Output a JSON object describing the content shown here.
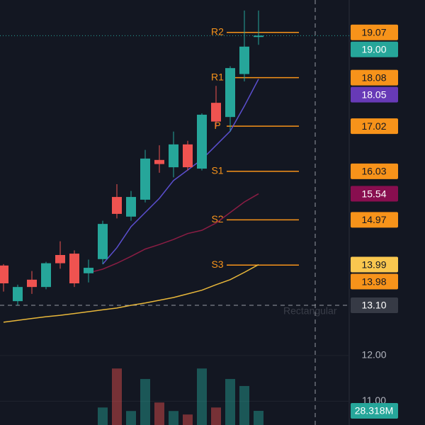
{
  "chart_data": {
    "type": "candlestick",
    "ylim": [
      10.48,
      19.78
    ],
    "yticks": [
      {
        "value": 12,
        "label": "12.00"
      },
      {
        "value": 11,
        "label": "11.00"
      }
    ],
    "grid": true,
    "up_color": "#26a69a",
    "down_color": "#ef5350",
    "open": [
      13.97,
      13.19,
      13.66,
      13.5,
      14.2,
      14.23,
      13.8,
      14.11,
      15.47,
      15.04,
      15.41,
      16.28,
      16.12,
      16.62,
      16.09,
      17.53,
      17.22,
      18.16,
      18.97
    ],
    "high": [
      14.0,
      13.55,
      13.85,
      14.05,
      14.5,
      14.3,
      14.1,
      14.95,
      15.75,
      15.6,
      16.5,
      16.6,
      16.9,
      16.7,
      17.3,
      17.9,
      18.33,
      19.55,
      19.55
    ],
    "low": [
      13.4,
      13.1,
      13.35,
      13.45,
      13.9,
      13.5,
      13.6,
      14.0,
      15.0,
      14.95,
      15.35,
      16.0,
      15.9,
      16.05,
      16.05,
      17.0,
      16.9,
      18.0,
      18.8
    ],
    "close": [
      13.58,
      13.5,
      13.5,
      14.02,
      14.02,
      13.58,
      13.92,
      14.88,
      15.1,
      15.47,
      16.31,
      16.19,
      16.62,
      16.12,
      17.27,
      17.12,
      18.29,
      18.76,
      19
    ],
    "last_close_label": "19.00",
    "moving_averages": [
      {
        "color": "#5b4fcf",
        "tag_color": "#673ab7",
        "values": [
          null,
          null,
          null,
          null,
          null,
          null,
          null,
          14.0,
          14.36,
          14.82,
          15.13,
          15.44,
          15.83,
          16.06,
          16.29,
          16.6,
          16.91,
          17.46,
          18.05
        ]
      },
      {
        "color": "#8b1d44",
        "tag_color": "#880e4f",
        "values": [
          null,
          null,
          null,
          null,
          null,
          null,
          13.81,
          13.89,
          14.02,
          14.17,
          14.33,
          14.43,
          14.54,
          14.67,
          14.74,
          14.9,
          15.13,
          15.36,
          15.54
        ]
      },
      {
        "color": "#e8b73a",
        "tag_color": "#f9c74f",
        "values": [
          12.73,
          12.77,
          12.81,
          12.85,
          12.88,
          12.92,
          12.96,
          13.0,
          13.04,
          13.1,
          13.15,
          13.21,
          13.27,
          13.35,
          13.43,
          13.55,
          13.66,
          13.82,
          13.99
        ]
      }
    ],
    "pivots": {
      "color": "#f7931a",
      "labels": [
        "R2",
        "R1",
        "P",
        "S1",
        "S2",
        "S3"
      ],
      "values": [
        19.07,
        18.08,
        17.02,
        16.03,
        14.97,
        13.98
      ]
    },
    "crosshair_price": {
      "value": 13.1,
      "label": "13.10"
    },
    "volume": [
      null,
      null,
      null,
      null,
      null,
      null,
      null,
      35,
      113,
      28,
      92,
      45,
      28,
      21,
      113,
      35,
      92,
      78,
      28.318
    ],
    "volume_ylim": [
      0,
      425
    ],
    "last_volume_label": "28.318M",
    "tooltip": "Rectangular"
  }
}
